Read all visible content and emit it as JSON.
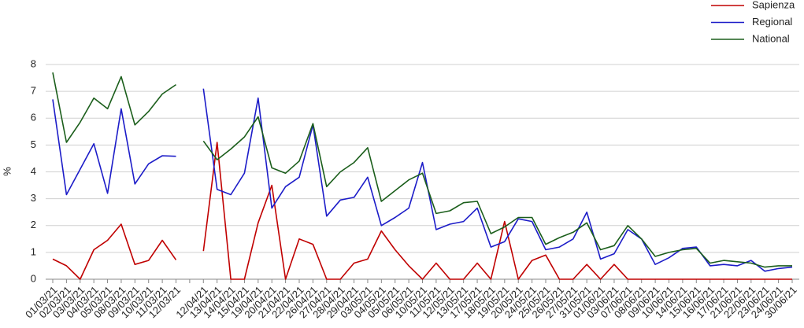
{
  "chart_data": {
    "type": "line",
    "y_label": "%",
    "categories": [
      "01/03/21",
      "02/03/21",
      "03/03/21",
      "04/03/21",
      "05/03/21",
      "08/03/21",
      "09/03/21",
      "10/03/21",
      "11/03/21",
      "12/03/21",
      null,
      "12/04/21",
      "13/04/21",
      "14/04/21",
      "15/04/21",
      "19/04/21",
      "20/04/21",
      "21/04/21",
      "22/04/21",
      "26/04/21",
      "27/04/21",
      "28/04/21",
      "29/04/21",
      "03/05/21",
      "04/05/21",
      "05/05/21",
      "06/05/21",
      "10/05/21",
      "11/05/21",
      "12/05/21",
      "13/05/21",
      "17/05/21",
      "18/05/21",
      "19/05/21",
      "20/05/21",
      "24/05/21",
      "25/05/21",
      "26/05/21",
      "27/05/21",
      "31/05/21",
      "01/06/21",
      "03/06/21",
      "07/06/21",
      "08/06/21",
      "09/06/21",
      "10/06/21",
      "14/06/21",
      "15/06/21",
      "16/06/21",
      "17/06/21",
      "21/06/21",
      "22/06/21",
      "23/06/21",
      "24/06/21",
      "30/06/21"
    ],
    "series": [
      {
        "name": "Sapienza",
        "color": "#c00000",
        "values": [
          0.75,
          0.5,
          0,
          1.1,
          1.45,
          2.05,
          0.55,
          0.7,
          1.45,
          0.72,
          null,
          1.05,
          5.1,
          0,
          0,
          2.1,
          3.5,
          0,
          1.5,
          1.3,
          0,
          0,
          0.6,
          0.75,
          1.8,
          1.1,
          0.5,
          0,
          0.6,
          0,
          0,
          0.6,
          0,
          2.15,
          0,
          0.7,
          0.9,
          0,
          0,
          0.55,
          0,
          0.55,
          0,
          0,
          0,
          0,
          0,
          0,
          0,
          0,
          0,
          0,
          0,
          0,
          0
        ]
      },
      {
        "name": "Regional",
        "color": "#1c1cc8",
        "values": [
          6.7,
          3.15,
          4.1,
          5.05,
          3.2,
          6.35,
          3.55,
          4.3,
          4.6,
          4.58,
          null,
          7.1,
          3.35,
          3.15,
          3.95,
          6.75,
          2.65,
          3.45,
          3.8,
          5.75,
          2.35,
          2.95,
          3.05,
          3.8,
          2.0,
          2.3,
          2.65,
          4.35,
          1.85,
          2.05,
          2.15,
          2.65,
          1.2,
          1.4,
          2.25,
          2.15,
          1.1,
          1.2,
          1.5,
          2.5,
          0.75,
          0.95,
          1.85,
          1.5,
          0.55,
          0.8,
          1.15,
          1.2,
          0.5,
          0.55,
          0.5,
          0.7,
          0.3,
          0.4,
          0.45
        ]
      },
      {
        "name": "National",
        "color": "#1b5e1b",
        "values": [
          7.7,
          5.1,
          5.85,
          6.75,
          6.35,
          7.55,
          5.75,
          6.25,
          6.9,
          7.25,
          null,
          5.15,
          4.45,
          4.85,
          5.3,
          6.05,
          4.15,
          3.95,
          4.4,
          5.8,
          3.45,
          4.0,
          4.35,
          4.9,
          2.9,
          3.3,
          3.7,
          3.95,
          2.45,
          2.55,
          2.85,
          2.9,
          1.7,
          1.95,
          2.3,
          2.3,
          1.3,
          1.55,
          1.75,
          2.1,
          1.1,
          1.25,
          2.0,
          1.5,
          0.85,
          1.0,
          1.1,
          1.15,
          0.6,
          0.7,
          0.65,
          0.6,
          0.45,
          0.5,
          0.5
        ]
      }
    ],
    "ylim": [
      0,
      8
    ],
    "yticks": [
      0,
      1,
      2,
      3,
      4,
      5,
      6,
      7,
      8
    ],
    "grid": true,
    "legend": "top-right"
  }
}
